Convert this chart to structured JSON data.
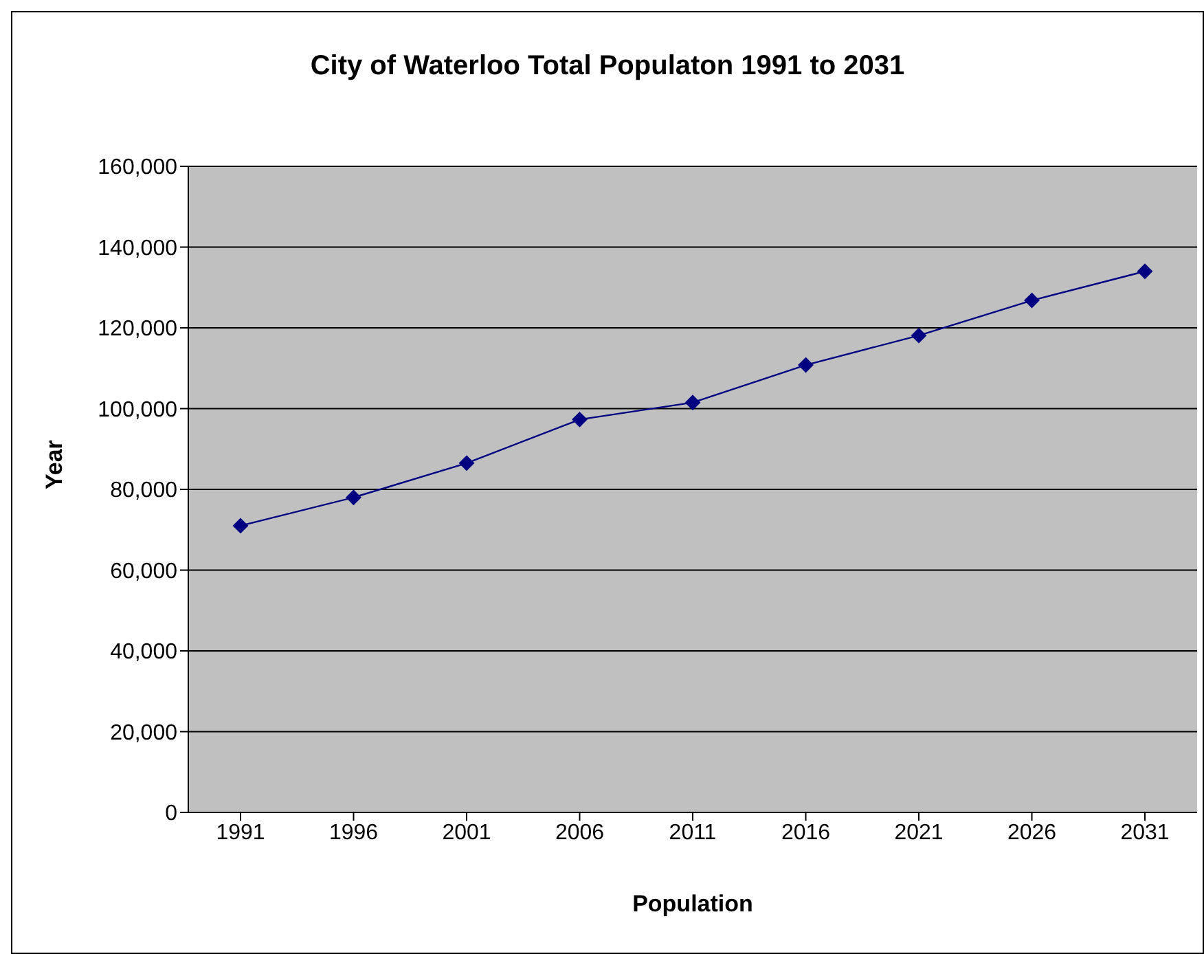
{
  "chart_data": {
    "type": "line",
    "title": "City of Waterloo Total Populaton 1991 to 2031",
    "xlabel": "Population",
    "ylabel": "Year",
    "categories": [
      "1991",
      "1996",
      "2001",
      "2006",
      "2011",
      "2016",
      "2021",
      "2026",
      "2031"
    ],
    "series": [
      {
        "color": "#000080",
        "values": [
          71000,
          78000,
          86500,
          97300,
          101500,
          110800,
          118100,
          126800,
          134000
        ]
      }
    ],
    "ylim": [
      0,
      160000
    ],
    "yticks": [
      0,
      {
        "value": 20000,
        "label": "20,000"
      },
      {
        "value": 40000,
        "label": "40,000"
      },
      {
        "value": 60000,
        "label": "60,000"
      },
      {
        "value": 80000,
        "label": "80,000"
      },
      {
        "value": 100000,
        "label": "100,000"
      },
      {
        "value": 120000,
        "label": "120,000"
      },
      {
        "value": 140000,
        "label": "140,000"
      },
      {
        "value": 160000,
        "label": "160,000"
      }
    ],
    "grid": "y",
    "marker": "diamond",
    "legend": false
  }
}
